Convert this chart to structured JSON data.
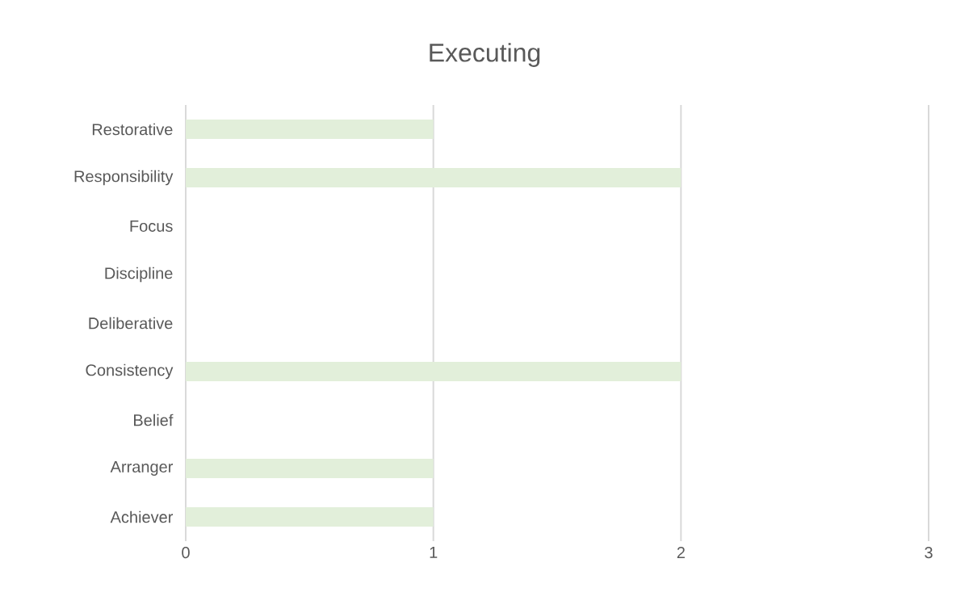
{
  "chart_data": {
    "type": "bar",
    "orientation": "horizontal",
    "title": "Executing",
    "categories": [
      "Restorative",
      "Responsibility",
      "Focus",
      "Discipline",
      "Deliberative",
      "Consistency",
      "Belief",
      "Arranger",
      "Achiever"
    ],
    "values": [
      1,
      2,
      0,
      0,
      0,
      2,
      0,
      1,
      1
    ],
    "color": "#e2efda",
    "xlim": [
      0,
      3
    ],
    "xticks": [
      0,
      1,
      2,
      3
    ],
    "grid": "x"
  }
}
